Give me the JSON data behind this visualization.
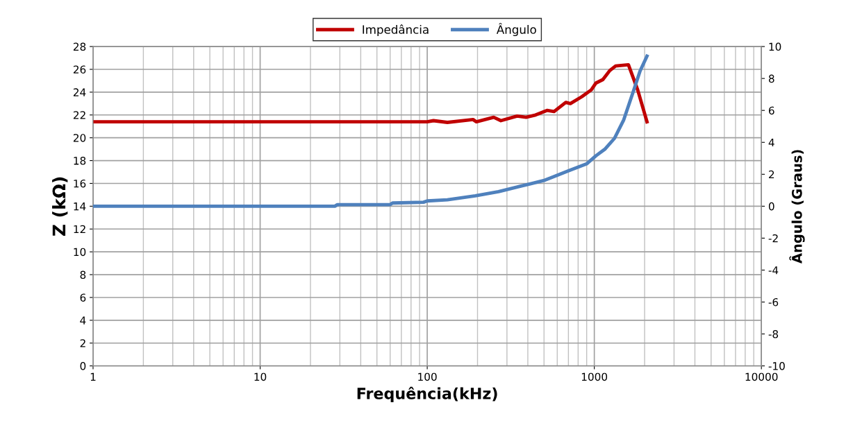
{
  "chart_data": {
    "type": "line",
    "xlabel": "Frequência(kHz)",
    "ylabel": "Z (kΩ)",
    "y2label": "Ângulo (Graus)",
    "log": "x",
    "grid": true,
    "legend": "top",
    "marker": "none",
    "line_style": "solid",
    "xlim": [
      1,
      10000
    ],
    "xticks": [
      1,
      10,
      100,
      1000,
      10000
    ],
    "ylim": [
      0,
      28
    ],
    "yticks": [
      0,
      2,
      4,
      6,
      8,
      10,
      12,
      14,
      16,
      18,
      20,
      22,
      24,
      26,
      28
    ],
    "y2lim": [
      -10,
      10
    ],
    "y2ticks": [
      -10,
      -8,
      -6,
      -4,
      -2,
      0,
      2,
      4,
      6,
      8,
      10
    ],
    "series": [
      {
        "name": "Impedância",
        "color": "#c00000",
        "x": [
          1,
          10,
          50,
          100,
          109,
          132,
          188,
          197,
          250,
          276,
          345,
          391,
          445,
          521,
          574,
          675,
          719,
          841,
          959,
          1023,
          1125,
          1239,
          1342,
          1600,
          1818,
          2067
        ],
        "values": [
          21.4,
          21.4,
          21.4,
          21.4,
          21.5,
          21.35,
          21.6,
          21.4,
          21.8,
          21.5,
          21.9,
          21.8,
          22.0,
          22.4,
          22.3,
          23.1,
          23.0,
          23.6,
          24.2,
          24.8,
          25.1,
          25.9,
          26.3,
          26.4,
          24.2,
          21.4
        ]
      },
      {
        "name": "Ângulo",
        "color": "#4f81bd",
        "axis": "y2",
        "x": [
          1,
          10,
          28,
          29,
          60,
          62,
          95,
          100,
          132,
          194,
          267,
          367,
          506,
          697,
          899,
          1023,
          1162,
          1320,
          1500,
          1707,
          1878,
          2067
        ],
        "values": [
          0,
          0,
          0,
          0.1,
          0.1,
          0.2,
          0.25,
          0.33,
          0.4,
          0.65,
          0.91,
          1.27,
          1.63,
          2.21,
          2.65,
          3.16,
          3.59,
          4.25,
          5.41,
          7.15,
          8.46,
          9.4
        ]
      }
    ]
  }
}
